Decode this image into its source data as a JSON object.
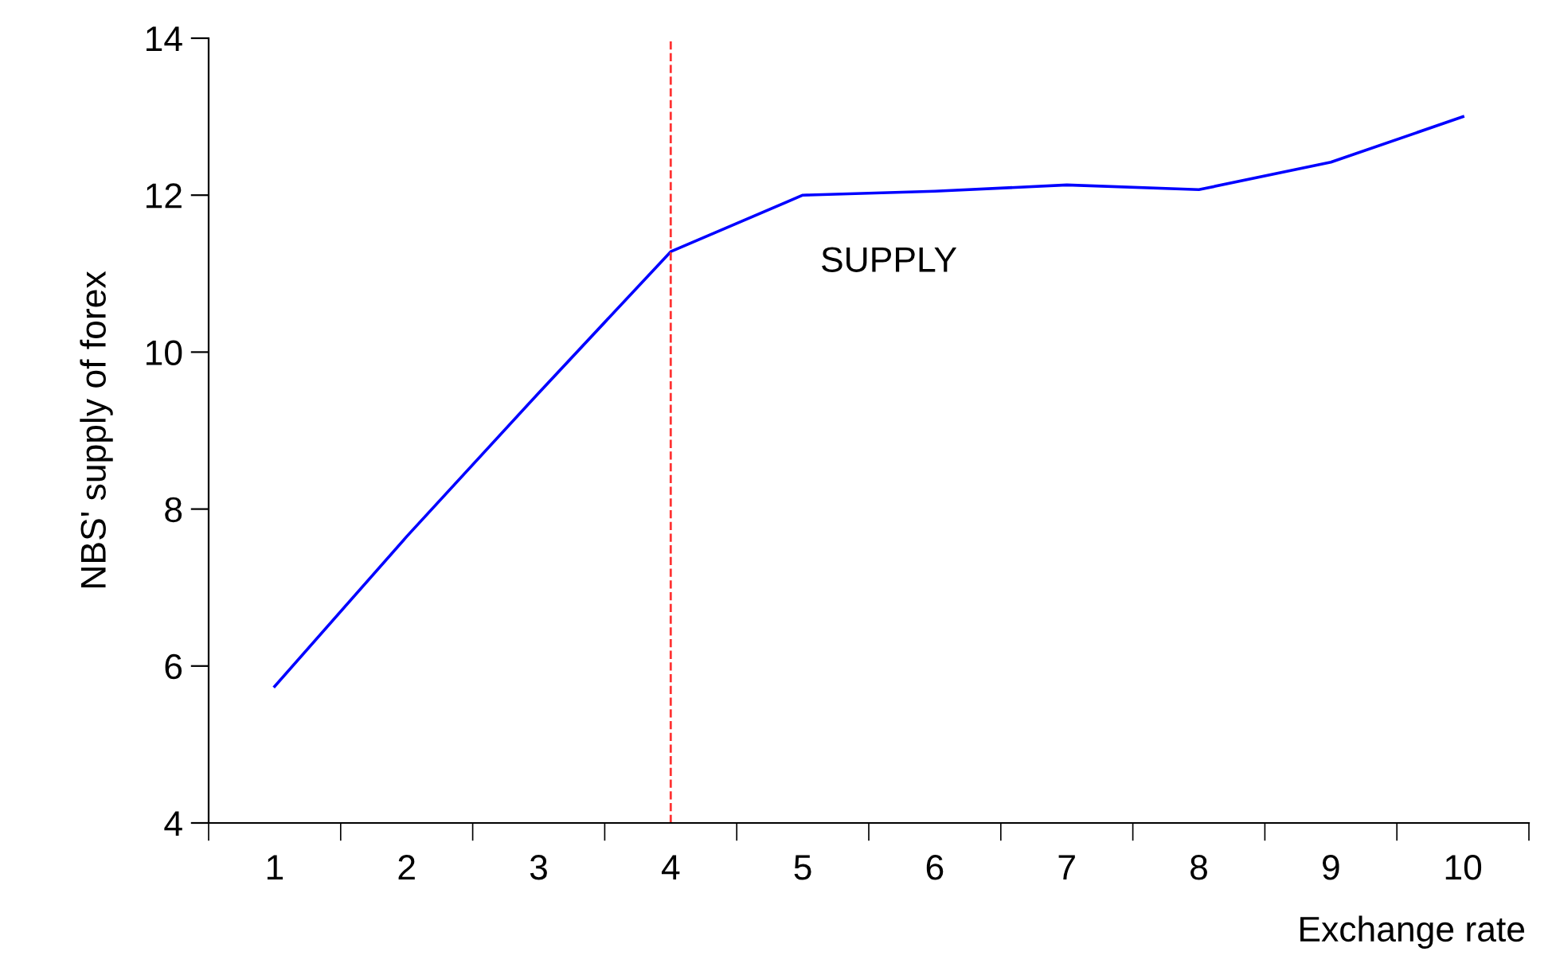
{
  "chart_data": {
    "type": "line",
    "xlabel": "Exchange rate",
    "ylabel": "NBS' supply of forex",
    "categories": [
      "1",
      "2",
      "3",
      "4",
      "5",
      "6",
      "7",
      "8",
      "9",
      "10"
    ],
    "series": [
      {
        "color": "#0000ff",
        "values": [
          5.74,
          7.65,
          9.48,
          11.28,
          12.0,
          12.05,
          12.13,
          12.07,
          12.42,
          13.0
        ]
      }
    ],
    "ylim": [
      4,
      14
    ],
    "yticks": [
      4,
      6,
      8,
      10,
      12,
      14
    ],
    "grid": false,
    "legend": false,
    "marker": "none",
    "line_style": "solid",
    "ref_lines": [
      {
        "axis": "x",
        "value": "4",
        "color": "#ff3333",
        "line_style": "dashed"
      }
    ],
    "annotations": [
      "SUPPLY"
    ]
  }
}
